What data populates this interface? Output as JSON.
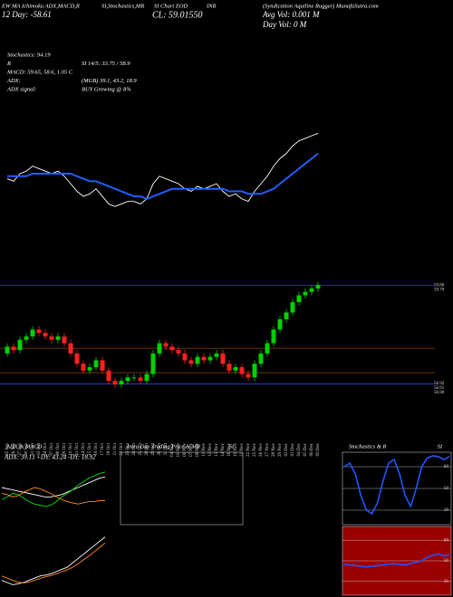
{
  "header": {
    "parts": [
      "EW MA Ichimoku ADX,MACD,R",
      "SI,Stochastics,MR",
      "SI Chart EOD",
      "INR",
      "(Syndication Aquiline Rugger) MunafaSutra.com"
    ],
    "line2": [
      "12 Day: -58.61",
      "CL: 59.01550",
      "Avg Vol: 0.001 M",
      "Day Vol: 0  M"
    ]
  },
  "info": [
    {
      "label": "Stochastics: 94.19"
    },
    {
      "label": "R",
      "value": "SI 14/5: 33.75 / 58.9"
    },
    {
      "label": "MACD: 59.65, 58.6, 1.05 C"
    },
    {
      "label": "ADX:",
      "value": "(MGB) 39.1, 43.2, 18.9"
    },
    {
      "label": "ADX  signal:",
      "value": "BUY Growing @ 8%"
    }
  ],
  "chart_data": [
    {
      "type": "line",
      "ylim": [
        56.3,
        60.6
      ],
      "series": [
        {
          "color": "#ffffff",
          "values": [
            58.0,
            57.9,
            58.2,
            58.3,
            58.5,
            58.4,
            58.3,
            58.2,
            58.3,
            58.1,
            57.8,
            57.5,
            57.3,
            57.4,
            57.6,
            57.3,
            57.0,
            56.9,
            57.0,
            57.1,
            57.1,
            57.0,
            57.2,
            57.8,
            58.1,
            58.0,
            57.9,
            57.8,
            57.6,
            57.5,
            57.7,
            57.6,
            57.7,
            57.8,
            57.5,
            57.3,
            57.4,
            57.2,
            57.1,
            57.5,
            57.8,
            58.1,
            58.5,
            58.8,
            59.0,
            59.3,
            59.5,
            59.6,
            59.7,
            59.8
          ]
        },
        {
          "color": "#1f5fff",
          "values": [
            58.1,
            58.1,
            58.1,
            58.1,
            58.2,
            58.2,
            58.2,
            58.2,
            58.2,
            58.2,
            58.2,
            58.1,
            58.0,
            57.9,
            57.9,
            57.8,
            57.7,
            57.6,
            57.5,
            57.4,
            57.3,
            57.3,
            57.2,
            57.3,
            57.4,
            57.5,
            57.6,
            57.6,
            57.6,
            57.6,
            57.6,
            57.6,
            57.6,
            57.6,
            57.6,
            57.5,
            57.5,
            57.5,
            57.4,
            57.4,
            57.4,
            57.5,
            57.6,
            57.8,
            58.0,
            58.2,
            58.4,
            58.6,
            58.8,
            59.0
          ]
        }
      ]
    },
    {
      "type": "candlestick",
      "ylim": [
        56.5,
        60.2
      ],
      "up_color": "#00d000",
      "down_color": "#ff2020",
      "categories": [
        "25 Sep",
        "26 Sep",
        "27 Sep",
        "30 Sep",
        "01 Oct",
        "03 Oct",
        "04 Oct",
        "07 Oct",
        "08 Oct",
        "09 Oct",
        "10 Oct",
        "11 Oct",
        "14 Oct",
        "15 Oct",
        "16 Oct",
        "17 Oct",
        "18 Oct",
        "21 Oct",
        "22 Oct",
        "23 Oct",
        "24 Oct",
        "25 Oct",
        "28 Oct",
        "29 Oct",
        "30 Oct",
        "31 Oct",
        "04 Nov",
        "05 Nov",
        "06 Nov",
        "07 Nov",
        "08 Nov",
        "11 Nov",
        "12 Nov",
        "13 Nov",
        "14 Nov",
        "18 Nov",
        "19 Nov",
        "21 Nov",
        "22 Nov",
        "25 Nov",
        "26 Nov",
        "27 Nov",
        "28 Nov",
        "29 Nov",
        "02 Dec",
        "03 Dec",
        "04 Dec",
        "05 Dec",
        "06 Dec",
        "09 Dec"
      ],
      "open": [
        57.8,
        58.0,
        57.9,
        58.2,
        58.3,
        58.5,
        58.4,
        58.3,
        58.2,
        58.3,
        58.1,
        57.8,
        57.5,
        57.3,
        57.4,
        57.6,
        57.3,
        57.0,
        56.9,
        57.0,
        57.1,
        57.1,
        57.0,
        57.2,
        57.8,
        58.1,
        58.0,
        57.9,
        57.8,
        57.6,
        57.5,
        57.7,
        57.6,
        57.7,
        57.8,
        57.5,
        57.3,
        57.4,
        57.2,
        57.1,
        57.5,
        57.8,
        58.1,
        58.5,
        58.8,
        59.0,
        59.3,
        59.5,
        59.6,
        59.7
      ],
      "high": [
        58.1,
        58.1,
        58.3,
        58.4,
        58.6,
        58.6,
        58.5,
        58.4,
        58.4,
        58.4,
        58.2,
        57.9,
        57.6,
        57.5,
        57.7,
        57.7,
        57.4,
        57.1,
        57.1,
        57.2,
        57.2,
        57.2,
        57.3,
        57.9,
        58.2,
        58.2,
        58.1,
        58.0,
        57.9,
        57.7,
        57.8,
        57.8,
        57.8,
        57.9,
        57.9,
        57.6,
        57.5,
        57.5,
        57.3,
        57.6,
        57.9,
        58.2,
        58.6,
        58.9,
        59.1,
        59.4,
        59.6,
        59.7,
        59.8,
        59.9
      ],
      "low": [
        57.7,
        57.8,
        57.8,
        58.1,
        58.2,
        58.3,
        58.2,
        58.1,
        58.1,
        58.0,
        57.7,
        57.4,
        57.2,
        57.2,
        57.3,
        57.2,
        56.9,
        56.8,
        56.8,
        56.9,
        57.0,
        56.9,
        56.9,
        57.1,
        57.7,
        57.9,
        57.8,
        57.7,
        57.5,
        57.4,
        57.4,
        57.5,
        57.5,
        57.6,
        57.4,
        57.2,
        57.2,
        57.1,
        57.0,
        57.0,
        57.4,
        57.7,
        58.0,
        58.4,
        58.7,
        58.9,
        59.2,
        59.4,
        59.5,
        59.6
      ],
      "close": [
        58.0,
        57.9,
        58.2,
        58.3,
        58.5,
        58.4,
        58.3,
        58.2,
        58.3,
        58.1,
        57.8,
        57.5,
        57.3,
        57.4,
        57.6,
        57.3,
        57.0,
        56.9,
        57.0,
        57.1,
        57.1,
        57.0,
        57.2,
        57.8,
        58.1,
        58.0,
        57.9,
        57.8,
        57.6,
        57.5,
        57.7,
        57.6,
        57.7,
        57.8,
        57.5,
        57.3,
        57.4,
        57.2,
        57.1,
        57.5,
        57.8,
        58.1,
        58.5,
        58.8,
        59.0,
        59.3,
        59.5,
        59.6,
        59.7,
        59.8
      ],
      "levels": [
        {
          "value": 59.8,
          "label": "59.80"
        },
        {
          "value": 59.79,
          "label": "59.79"
        },
        {
          "value": 56.92,
          "label": "56.92"
        },
        {
          "value": 56.91,
          "label": "56.91"
        },
        {
          "value": 56.9,
          "label": "56.90"
        }
      ],
      "level_color": "#2233bb",
      "reference_lines": [
        {
          "value": 57.95,
          "color": "#8b4513"
        },
        {
          "value": 57.24,
          "color": "#8b4513"
        }
      ]
    },
    {
      "type": "line",
      "title": "ADX  & MACD",
      "subtitle": "ADX: 39.13 +DY: 43.24 -DY: 18.92",
      "ylim": [
        0,
        60
      ],
      "series": [
        {
          "color": "#ffffff",
          "values": [
            30,
            29,
            28,
            27,
            26,
            25,
            24,
            23,
            22,
            22,
            23,
            24,
            26,
            28,
            30,
            32,
            34,
            36,
            38,
            39.1
          ]
        },
        {
          "color": "#00e000",
          "values": [
            20,
            22,
            25,
            24,
            21,
            18,
            16,
            15,
            14,
            15,
            18,
            22,
            25,
            28,
            32,
            35,
            38,
            40,
            42,
            43.2
          ]
        },
        {
          "color": "#ff8c1a",
          "values": [
            25,
            24,
            22,
            23,
            26,
            28,
            30,
            29,
            27,
            25,
            22,
            20,
            18,
            17,
            16,
            17,
            18,
            18,
            19,
            18.9
          ]
        }
      ]
    },
    {
      "type": "line",
      "ylim": [
        -0.5,
        1.0
      ],
      "series": [
        {
          "color": "#ffffff",
          "values": [
            -0.2,
            -0.25,
            -0.3,
            -0.28,
            -0.25,
            -0.2,
            -0.15,
            -0.1,
            -0.08,
            -0.05,
            0,
            0.05,
            0.1,
            0.2,
            0.3,
            0.4,
            0.5,
            0.6,
            0.7,
            0.8
          ]
        },
        {
          "color": "#ff8c1a",
          "values": [
            -0.1,
            -0.15,
            -0.2,
            -0.24,
            -0.26,
            -0.24,
            -0.2,
            -0.16,
            -0.12,
            -0.09,
            -0.05,
            0,
            0.04,
            0.1,
            0.18,
            0.27,
            0.36,
            0.46,
            0.56,
            0.66
          ]
        }
      ]
    },
    {
      "type": "panel",
      "title": "Intra Day Trading Price  & MR",
      "title2": "SI"
    },
    {
      "type": "line",
      "title": "Stochastics & R",
      "title2": "SI",
      "ylim": [
        0,
        100
      ],
      "yticks": [
        20,
        50,
        80
      ],
      "grid": true,
      "series": [
        {
          "color": "#2255ff",
          "values": [
            80,
            85,
            70,
            40,
            20,
            15,
            30,
            60,
            85,
            90,
            70,
            40,
            25,
            50,
            80,
            92,
            95,
            94,
            90,
            94.19
          ]
        }
      ]
    },
    {
      "type": "line",
      "ylim": [
        0,
        100
      ],
      "yticks": [
        20,
        50,
        80
      ],
      "grid": true,
      "background": "#9b0000",
      "series": [
        {
          "color": "#2255ff",
          "values": [
            45,
            44,
            43,
            42,
            41,
            42,
            43,
            44,
            45,
            46,
            45,
            44,
            46,
            48,
            50,
            55,
            58,
            60,
            57,
            58.9
          ]
        }
      ]
    }
  ]
}
